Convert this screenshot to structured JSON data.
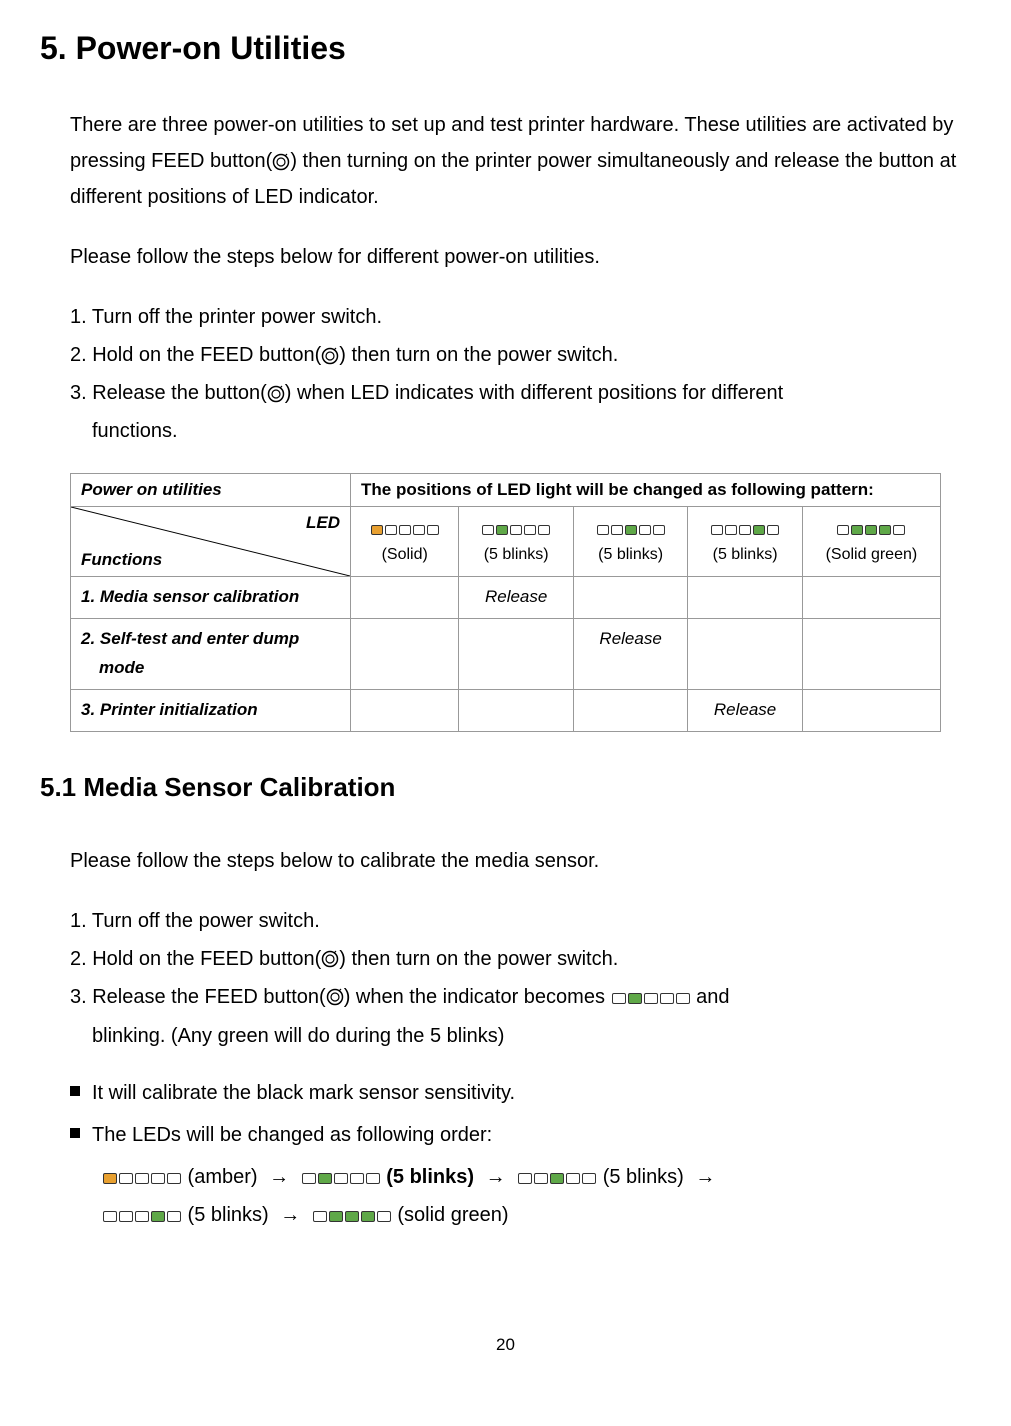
{
  "colors": {
    "amber": "#e8a030",
    "green": "#5fa848",
    "empty": "#ffffff",
    "block_border": "#333333",
    "table_border": "#999999",
    "text": "#000000",
    "background": "#ffffff"
  },
  "typography": {
    "main_heading_size": 32,
    "sub_heading_size": 26,
    "body_size": 20,
    "table_size": 17,
    "pattern_label_size": 16,
    "page_num_size": 17
  },
  "heading": "5. Power-on Utilities",
  "intro_p1": "There are three power-on utilities to set up and test printer hardware. These utilities are activated by pressing FEED button(",
  "intro_p1_after": ") then turning on the printer power simultaneously and release the button at different positions of LED indicator.",
  "intro_p2": "Please follow the steps below for different power-on utilities.",
  "steps_a": {
    "s1": "1. Turn off the printer power switch.",
    "s2_pre": "2. Hold on the FEED button(",
    "s2_post": ") then turn on the power switch.",
    "s3_pre": "3. Release the button(",
    "s3_post": ") when LED indicates with different positions for different",
    "s3_cont": "functions."
  },
  "table": {
    "header_left": "Power on utilities",
    "header_right": "The positions of LED light will be changed as following pattern:",
    "led_label": "LED",
    "functions_label": "Functions",
    "patterns": [
      {
        "blocks": [
          "amber",
          "empty",
          "empty",
          "empty",
          "empty"
        ],
        "label": "(Solid)"
      },
      {
        "blocks": [
          "empty",
          "green",
          "empty",
          "empty",
          "empty"
        ],
        "label": "(5 blinks)"
      },
      {
        "blocks": [
          "empty",
          "empty",
          "green",
          "empty",
          "empty"
        ],
        "label": "(5 blinks)"
      },
      {
        "blocks": [
          "empty",
          "empty",
          "empty",
          "green",
          "empty"
        ],
        "label": "(5 blinks)"
      },
      {
        "blocks": [
          "empty",
          "green",
          "green",
          "green",
          "empty"
        ],
        "label": "(Solid green)"
      }
    ],
    "rows": [
      {
        "name": "1. Media sensor calibration",
        "release_col": 1
      },
      {
        "name": "2. Self-test and enter dump mode",
        "release_col": 2
      },
      {
        "name": "3. Printer initialization",
        "release_col": 3
      }
    ],
    "release_text": "Release"
  },
  "subheading": "5.1  Media Sensor Calibration",
  "cal_intro": "Please follow the steps below to calibrate the media sensor.",
  "steps_b": {
    "s1": "1. Turn off the power switch.",
    "s2_pre": "2. Hold on the FEED button(",
    "s2_post": ") then turn on the power switch.",
    "s3_pre": "3. Release the FEED button(",
    "s3_mid": ") when the indicator becomes  ",
    "s3_blocks": [
      "empty",
      "green",
      "empty",
      "empty",
      "empty"
    ],
    "s3_post": "  and",
    "s3_cont": "blinking. (Any green will do during the 5 blinks)"
  },
  "bullets": {
    "b1": "It will calibrate the black mark sensor sensitivity.",
    "b2": "The LEDs will be changed as following order:"
  },
  "sequence": [
    {
      "blocks": [
        "amber",
        "empty",
        "empty",
        "empty",
        "empty"
      ],
      "label": " (amber) ",
      "bold": false
    },
    {
      "blocks": [
        "empty",
        "green",
        "empty",
        "empty",
        "empty"
      ],
      "label": " (5 blinks) ",
      "bold": true
    },
    {
      "blocks": [
        "empty",
        "empty",
        "green",
        "empty",
        "empty"
      ],
      "label": " (5 blinks) ",
      "bold": false
    },
    {
      "blocks": [
        "empty",
        "empty",
        "empty",
        "green",
        "empty"
      ],
      "label": " (5 blinks) ",
      "bold": false
    },
    {
      "blocks": [
        "empty",
        "green",
        "green",
        "green",
        "empty"
      ],
      "label": " (solid green)",
      "bold": false
    }
  ],
  "arrow": "→",
  "page_num": "20"
}
